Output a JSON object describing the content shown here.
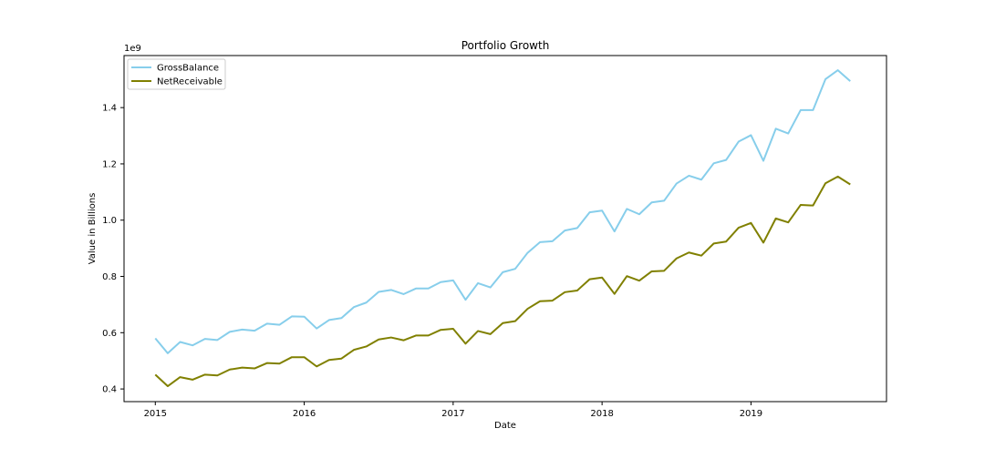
{
  "chart_data": {
    "type": "line",
    "title": "Portfolio Growth",
    "xlabel": "Date",
    "ylabel": "Value in Billions",
    "y_offset_label": "1e9",
    "xlim": [
      2014.79,
      2019.91
    ],
    "ylim": [
      0.355,
      1.585
    ],
    "x_ticks": [
      2015,
      2016,
      2017,
      2018,
      2019
    ],
    "x_tick_labels": [
      "2015",
      "2016",
      "2017",
      "2018",
      "2019"
    ],
    "y_ticks": [
      0.4,
      0.6,
      0.8,
      1.0,
      1.2,
      1.4
    ],
    "y_tick_labels": [
      "0.4",
      "0.6",
      "0.8",
      "1.0",
      "1.2",
      "1.4"
    ],
    "grid": false,
    "legend_position": "top-left",
    "x_start": 2015.0,
    "x_step_months": 1,
    "series": [
      {
        "name": "GrossBalance",
        "color": "#87ceeb",
        "values": [
          0.58,
          0.527,
          0.567,
          0.555,
          0.578,
          0.574,
          0.603,
          0.611,
          0.607,
          0.632,
          0.628,
          0.658,
          0.657,
          0.615,
          0.645,
          0.652,
          0.691,
          0.707,
          0.745,
          0.752,
          0.737,
          0.757,
          0.757,
          0.78,
          0.786,
          0.717,
          0.776,
          0.761,
          0.815,
          0.827,
          0.884,
          0.922,
          0.925,
          0.963,
          0.972,
          1.028,
          1.034,
          0.96,
          1.04,
          1.021,
          1.063,
          1.069,
          1.13,
          1.158,
          1.144,
          1.202,
          1.214,
          1.279,
          1.302,
          1.211,
          1.325,
          1.308,
          1.391,
          1.391,
          1.501,
          1.533,
          1.494
        ]
      },
      {
        "name": "NetReceivable",
        "color": "#808000",
        "values": [
          0.451,
          0.41,
          0.442,
          0.433,
          0.451,
          0.448,
          0.469,
          0.476,
          0.473,
          0.492,
          0.49,
          0.513,
          0.513,
          0.48,
          0.503,
          0.508,
          0.539,
          0.551,
          0.576,
          0.583,
          0.573,
          0.59,
          0.59,
          0.61,
          0.614,
          0.561,
          0.606,
          0.595,
          0.634,
          0.641,
          0.685,
          0.712,
          0.714,
          0.744,
          0.75,
          0.79,
          0.796,
          0.738,
          0.801,
          0.785,
          0.818,
          0.82,
          0.864,
          0.885,
          0.874,
          0.917,
          0.924,
          0.973,
          0.99,
          0.92,
          1.006,
          0.992,
          1.054,
          1.052,
          1.131,
          1.155,
          1.127
        ]
      }
    ]
  }
}
